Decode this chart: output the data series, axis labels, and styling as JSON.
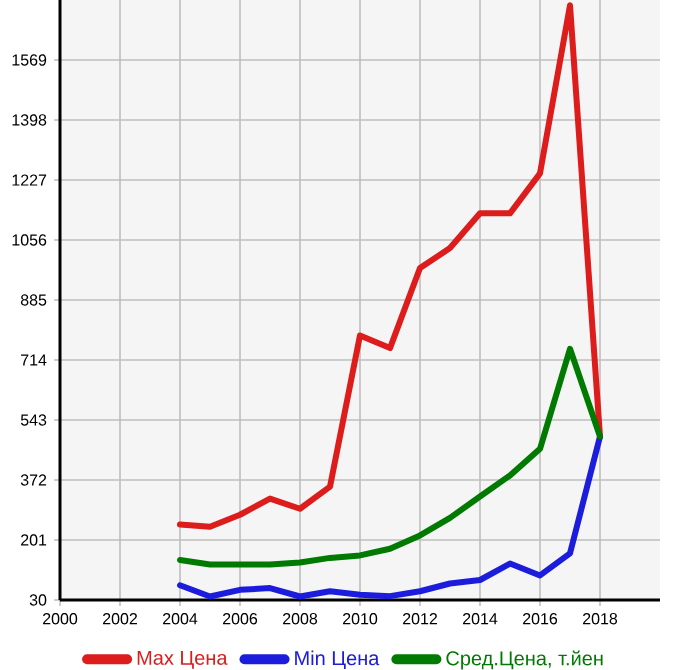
{
  "chart_data": {
    "type": "line",
    "x": [
      2004,
      2005,
      2006,
      2007,
      2008,
      2009,
      2010,
      2011,
      2012,
      2013,
      2014,
      2015,
      2016,
      2017,
      2018
    ],
    "series": [
      {
        "name": "Max Цена",
        "color": "#dd1c1c",
        "values": [
          245,
          239,
          273,
          319,
          290,
          353,
          784,
          748,
          976,
          1033,
          1132,
          1132,
          1246,
          1725,
          496
        ]
      },
      {
        "name": "Min Цена",
        "color": "#1c1cdd",
        "values": [
          72,
          40,
          59,
          64,
          40,
          55,
          45,
          41,
          55,
          77,
          87,
          134,
          100,
          163,
          496
        ]
      },
      {
        "name": "Сред.Цена, т.йен",
        "color": "#007a00",
        "values": [
          144,
          131,
          131,
          131,
          137,
          150,
          157,
          176,
          214,
          264,
          325,
          385,
          461,
          746,
          496
        ]
      }
    ],
    "xlim": [
      2000,
      2020
    ],
    "xticks": [
      2000,
      2002,
      2004,
      2006,
      2008,
      2010,
      2012,
      2014,
      2016,
      2018
    ],
    "ylim": [
      30,
      1740
    ],
    "yticks": [
      30,
      201,
      372,
      543,
      714,
      885,
      1056,
      1227,
      1398,
      1569
    ],
    "grid": true,
    "legend": "bottom",
    "marker": "none",
    "line_style": "solid"
  }
}
